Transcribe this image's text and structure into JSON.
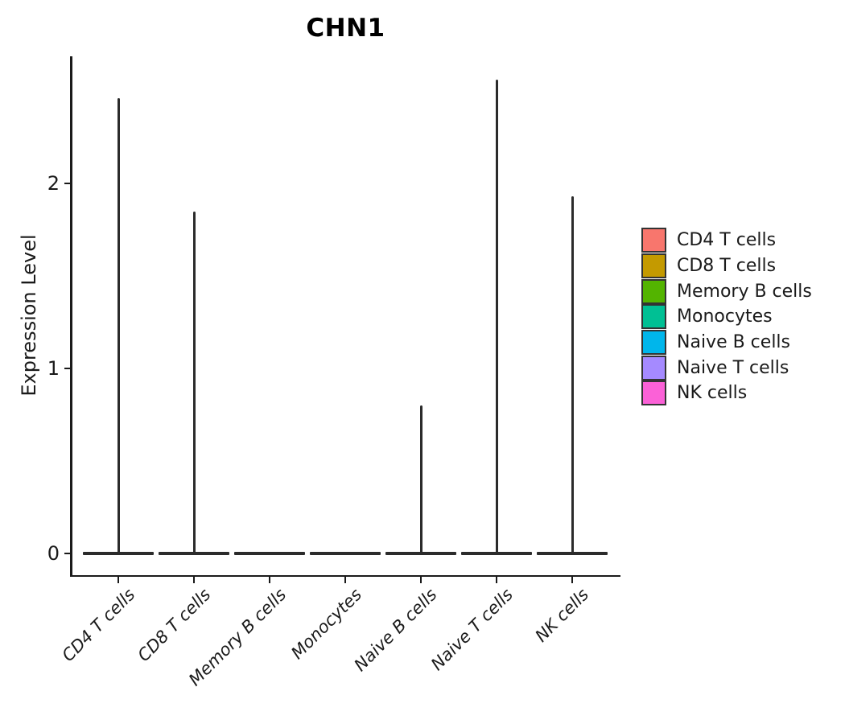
{
  "title": "CHN1",
  "y_axis": {
    "label": "Expression Level",
    "tick_labels": [
      "0",
      "1",
      "2"
    ]
  },
  "x_axis": {
    "categories": [
      "CD4 T cells",
      "CD8 T cells",
      "Memory B cells",
      "Monocytes",
      "Naive B cells",
      "Naive T cells",
      "NK cells"
    ]
  },
  "legend": {
    "position": "right",
    "items": [
      {
        "label": "CD4 T cells",
        "color": "#F8766D"
      },
      {
        "label": "CD8 T cells",
        "color": "#C49A00"
      },
      {
        "label": "Memory B cells",
        "color": "#53B400"
      },
      {
        "label": "Monocytes",
        "color": "#00C094"
      },
      {
        "label": "Naive B cells",
        "color": "#00B6EB"
      },
      {
        "label": "Naive T cells",
        "color": "#A58AFF"
      },
      {
        "label": "NK cells",
        "color": "#FB61D7"
      }
    ]
  },
  "chart_data": {
    "type": "violin",
    "title": "CHN1",
    "xlabel": "",
    "ylabel": "Expression Level",
    "ylim": [
      0,
      2.7
    ],
    "y_ticks": [
      0,
      1,
      2
    ],
    "grid": false,
    "legend_position": "right",
    "categories": [
      "CD4 T cells",
      "CD8 T cells",
      "Memory B cells",
      "Monocytes",
      "Naive B cells",
      "Naive T cells",
      "NK cells"
    ],
    "series": [
      {
        "name": "CD4 T cells",
        "color": "#F8766D",
        "bulk_at": 0,
        "spike_max": 2.46
      },
      {
        "name": "CD8 T cells",
        "color": "#C49A00",
        "bulk_at": 0,
        "spike_max": 1.85
      },
      {
        "name": "Memory B cells",
        "color": "#53B400",
        "bulk_at": 0,
        "spike_max": 0
      },
      {
        "name": "Monocytes",
        "color": "#00C094",
        "bulk_at": 0,
        "spike_max": 0
      },
      {
        "name": "Naive B cells",
        "color": "#00B6EB",
        "bulk_at": 0,
        "spike_max": 0.8
      },
      {
        "name": "Naive T cells",
        "color": "#A58AFF",
        "bulk_at": 0,
        "spike_max": 2.56
      },
      {
        "name": "NK cells",
        "color": "#FB61D7",
        "bulk_at": 0,
        "spike_max": 1.93
      }
    ],
    "style_note": "violin densities collapsed at 0 with thin spikes up to spike_max"
  }
}
